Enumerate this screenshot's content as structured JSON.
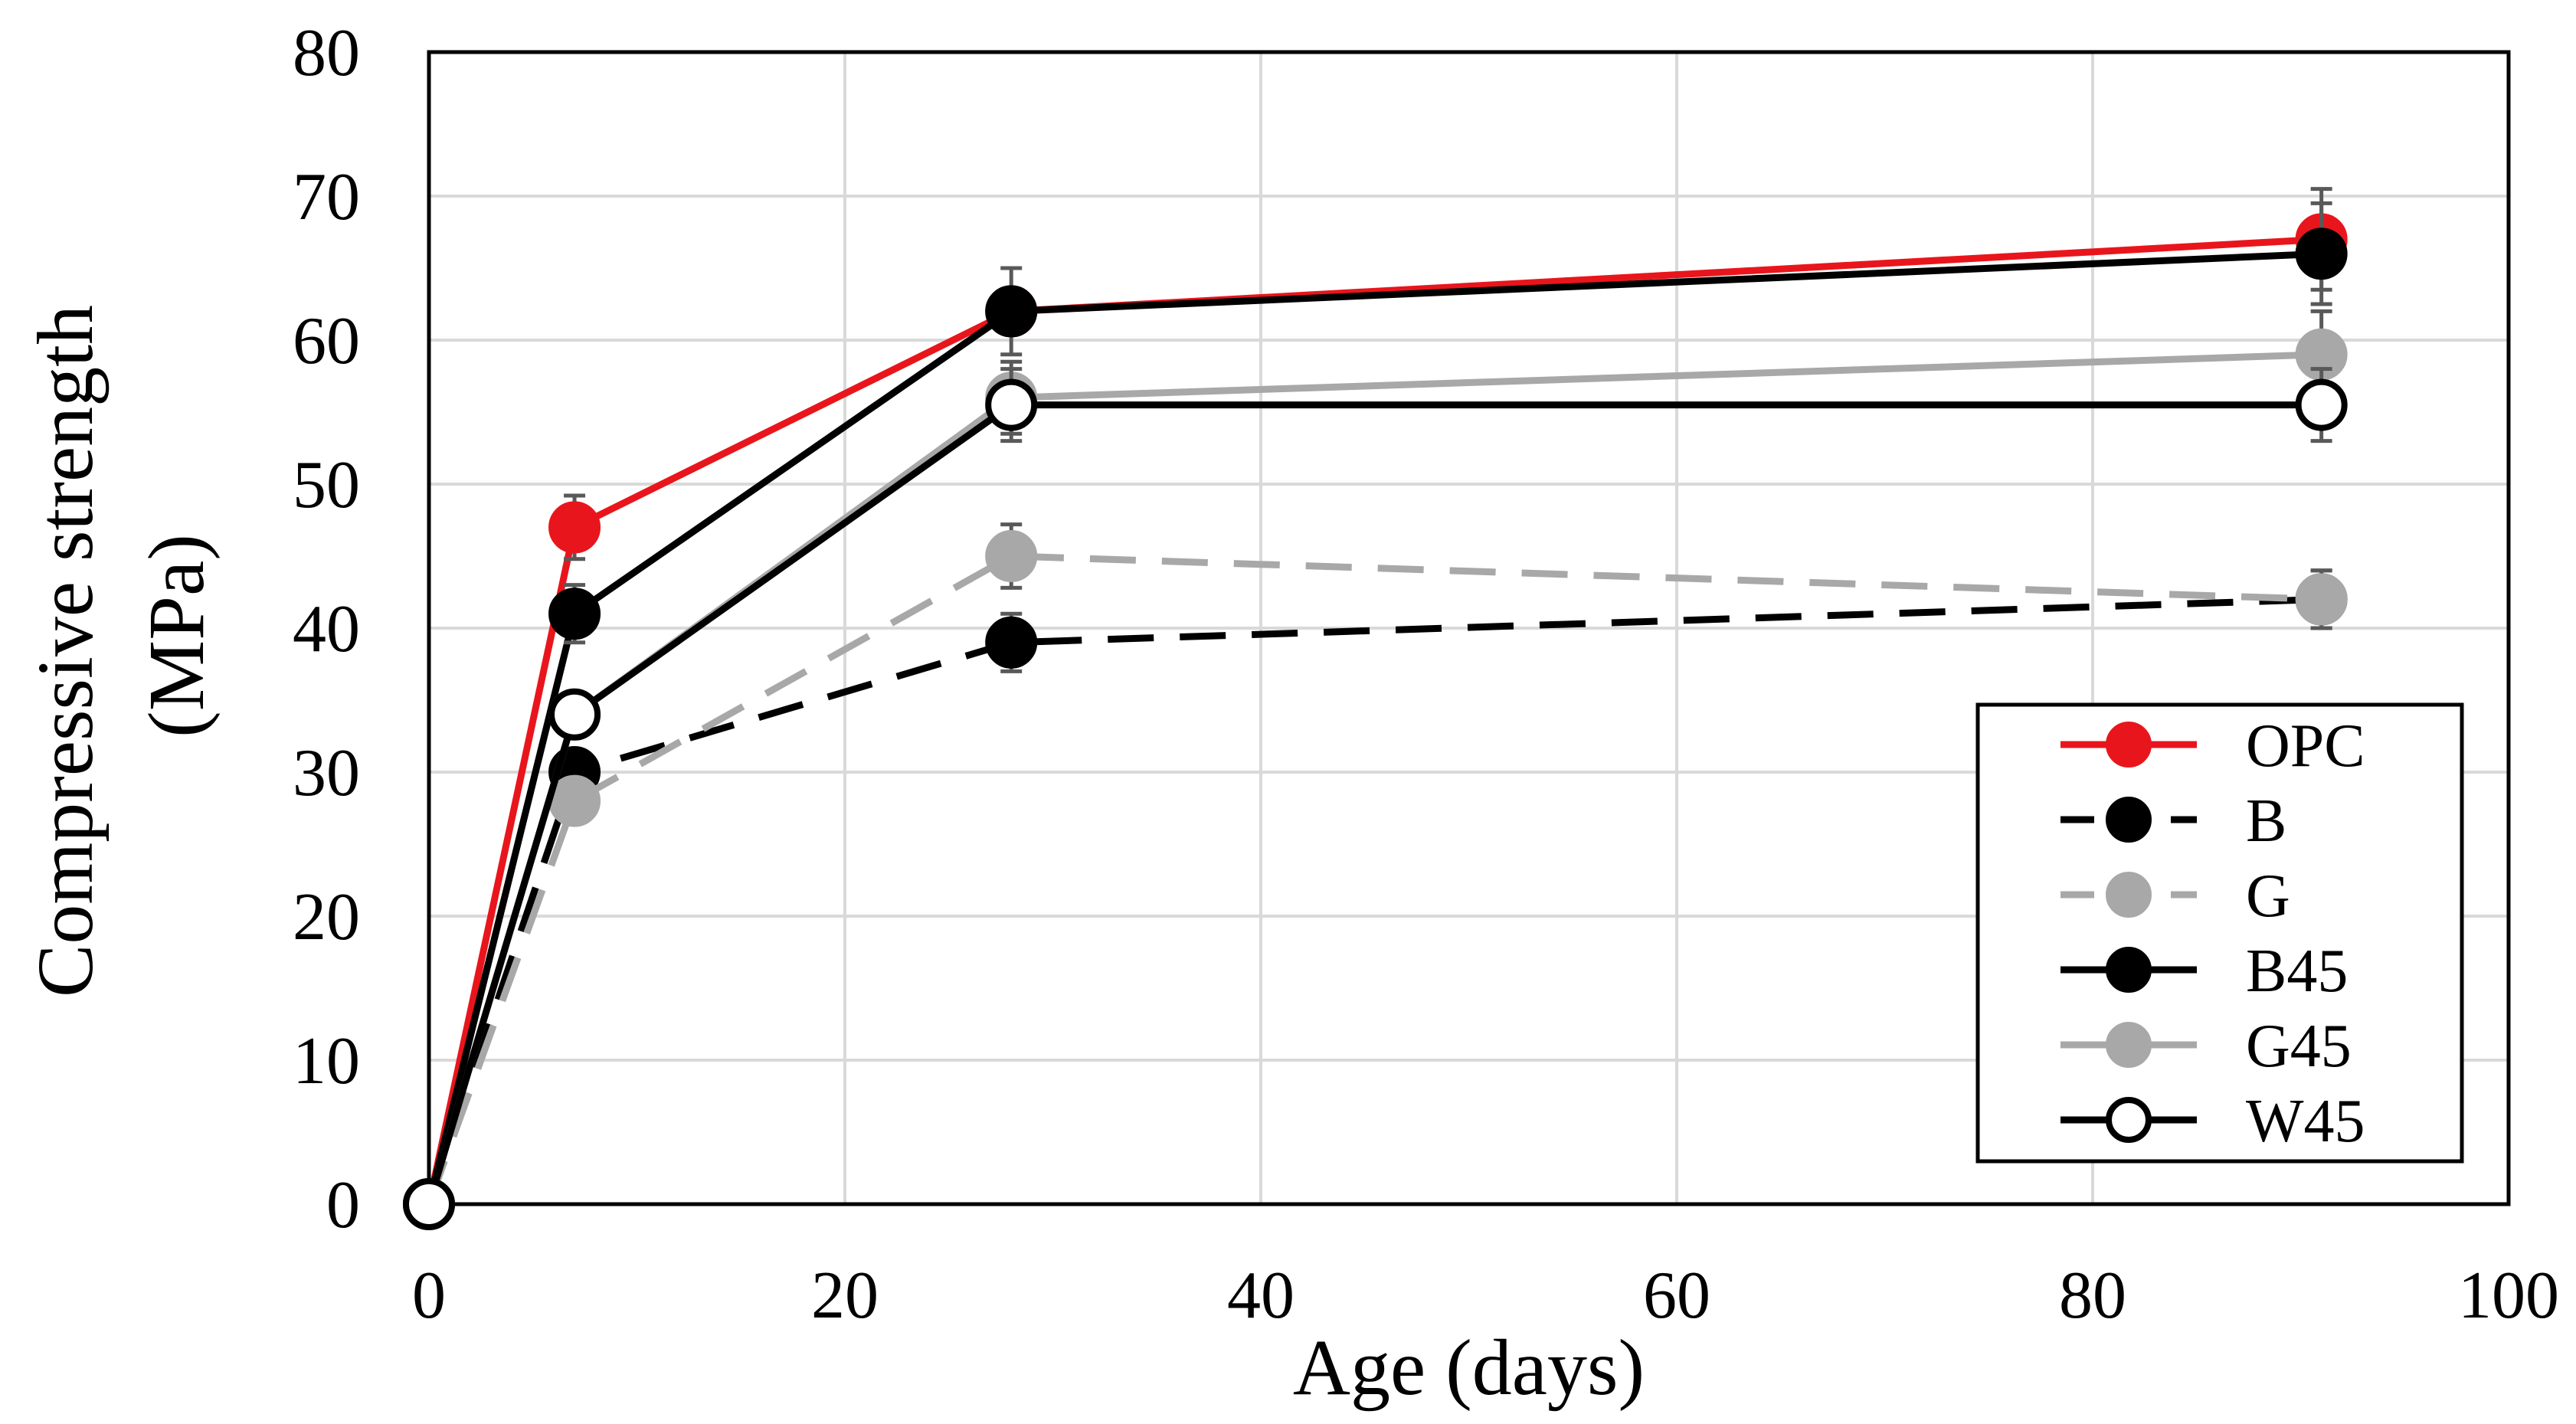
{
  "chart_data": {
    "type": "line",
    "title": "",
    "xlabel": "Age (days)",
    "ylabel_line1": "Compressive  strength",
    "ylabel_line2": "(MPa)",
    "xlim": [
      0,
      100
    ],
    "ylim": [
      0,
      80
    ],
    "xticks": [
      0,
      20,
      40,
      60,
      80,
      100
    ],
    "yticks": [
      0,
      10,
      20,
      30,
      40,
      50,
      60,
      70,
      80
    ],
    "grid": true,
    "legend_position": "lower-right",
    "series": [
      {
        "name": "OPC",
        "color": "#e8161c",
        "dash": false,
        "marker_fill": "#e8161c",
        "marker_stroke": "#e8161c",
        "x": [
          0,
          7,
          28,
          91
        ],
        "y": [
          0,
          47,
          62,
          67
        ],
        "error": [
          0,
          2.2,
          0,
          3.5
        ]
      },
      {
        "name": "B",
        "color": "#000000",
        "dash": true,
        "marker_fill": "#000000",
        "marker_stroke": "#000000",
        "x": [
          0,
          7,
          28,
          91
        ],
        "y": [
          0,
          30,
          39,
          42
        ],
        "error": [
          0,
          0,
          2,
          2
        ]
      },
      {
        "name": "G",
        "color": "#a8a8a8",
        "dash": true,
        "marker_fill": "#a8a8a8",
        "marker_stroke": "#a8a8a8",
        "x": [
          0,
          7,
          28,
          91
        ],
        "y": [
          0,
          28,
          45,
          42
        ],
        "error": [
          0,
          0,
          2.2,
          2
        ]
      },
      {
        "name": "B45",
        "color": "#000000",
        "dash": false,
        "marker_fill": "#000000",
        "marker_stroke": "#000000",
        "x": [
          0,
          7,
          28,
          91
        ],
        "y": [
          0,
          41,
          62,
          66
        ],
        "error": [
          0,
          2,
          3,
          3.5
        ]
      },
      {
        "name": "G45",
        "color": "#a8a8a8",
        "dash": false,
        "marker_fill": "#a8a8a8",
        "marker_stroke": "#a8a8a8",
        "x": [
          0,
          7,
          28,
          91
        ],
        "y": [
          0,
          34,
          56,
          59
        ],
        "error": [
          0,
          0,
          2.5,
          3
        ]
      },
      {
        "name": "W45",
        "color": "#000000",
        "dash": false,
        "marker_fill": "#ffffff",
        "marker_stroke": "#000000",
        "x": [
          0,
          7,
          28,
          91
        ],
        "y": [
          0,
          34,
          55.5,
          55.5
        ],
        "error": [
          0,
          0,
          2.5,
          2.5
        ]
      }
    ]
  }
}
